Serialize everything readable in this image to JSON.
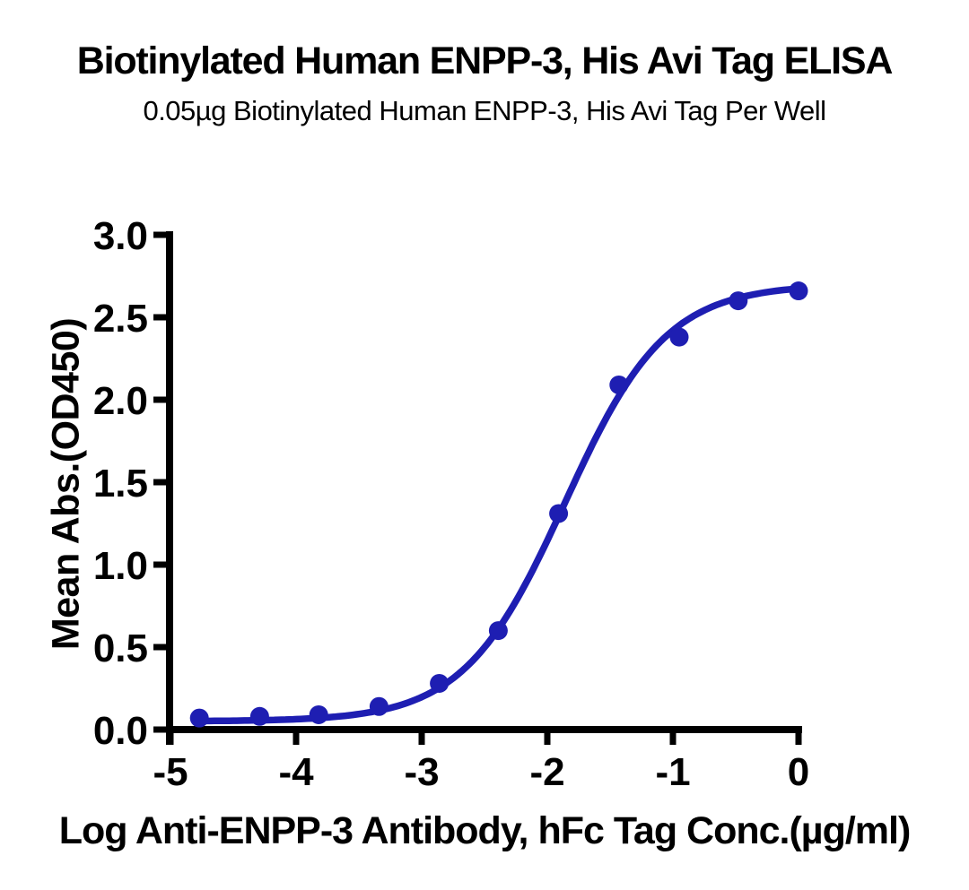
{
  "chart_data": {
    "type": "scatter",
    "title": "Biotinylated Human ENPP-3, His Avi Tag ELISA",
    "subtitle": "0.05µg Biotinylated Human ENPP-3, His Avi Tag Per Well",
    "xlabel": "Log Anti-ENPP-3 Antibody, hFc Tag Conc.(µg/ml)",
    "ylabel": "Mean Abs.(OD450)",
    "xlim": [
      -5,
      0
    ],
    "ylim": [
      0,
      3
    ],
    "x_ticks": [
      -5,
      -4,
      -3,
      -2,
      -1,
      0
    ],
    "x_tick_labels": [
      "-5",
      "-4",
      "-3",
      "-2",
      "-1",
      "0"
    ],
    "y_ticks": [
      0,
      0.5,
      1,
      1.5,
      2,
      2.5,
      3
    ],
    "y_tick_labels": [
      "0.0",
      "0.5",
      "1.0",
      "1.5",
      "2.0",
      "2.5",
      "3.0"
    ],
    "grid": false,
    "legend_position": "none",
    "series": [
      {
        "name": "Anti-ENPP-3 Antibody, hFc Tag",
        "marker": "circle",
        "x": [
          -4.77,
          -4.29,
          -3.82,
          -3.34,
          -2.86,
          -2.39,
          -1.91,
          -1.43,
          -0.95,
          -0.48,
          0.0
        ],
        "y": [
          0.07,
          0.08,
          0.09,
          0.14,
          0.28,
          0.6,
          1.31,
          2.09,
          2.38,
          2.6,
          2.66
        ]
      }
    ],
    "fit_curve": {
      "model": "4PL",
      "bottom": 0.05,
      "top": 2.7,
      "log_ec50": -1.86,
      "hill_slope": 1.08
    },
    "colors": {
      "curve": "#1e1eb2",
      "marker": "#1e1eb2",
      "axis": "#000000",
      "text": "#000000",
      "background": "#ffffff"
    }
  }
}
